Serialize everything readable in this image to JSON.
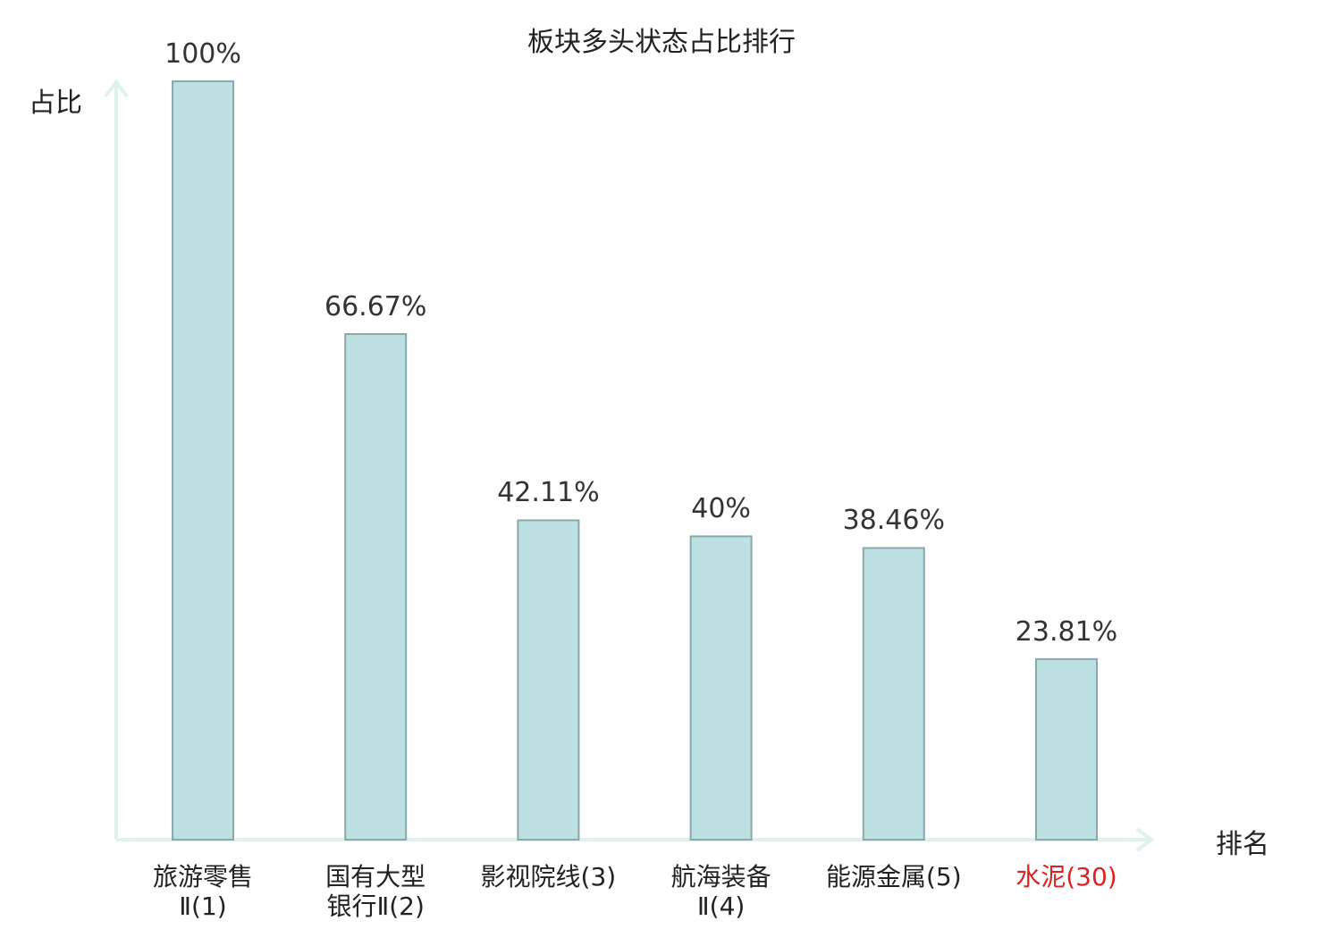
{
  "chart_data": {
    "type": "bar",
    "title": "板块多头状态占比排行",
    "ylabel": "占比",
    "xlabel": "排名",
    "ylim": [
      0,
      100
    ],
    "grid": false,
    "categories": [
      {
        "name": "旅游零售Ⅱ",
        "rank": "(1)",
        "line1": "旅游零售",
        "line2": "Ⅱ(1)",
        "highlight": false
      },
      {
        "name": "国有大型银行Ⅱ",
        "rank": "(2)",
        "line1": "国有大型",
        "line2": "银行Ⅱ(2)",
        "highlight": false
      },
      {
        "name": "影视院线",
        "rank": "(3)",
        "line1": "影视院线(3)",
        "line2": "",
        "highlight": false
      },
      {
        "name": "航海装备Ⅱ",
        "rank": "(4)",
        "line1": "航海装备",
        "line2": "Ⅱ(4)",
        "highlight": false
      },
      {
        "name": "能源金属",
        "rank": "(5)",
        "line1": "能源金属(5)",
        "line2": "",
        "highlight": false
      },
      {
        "name": "水泥",
        "rank": "(30)",
        "line1": "水泥(30)",
        "line2": "",
        "highlight": true
      }
    ],
    "values": [
      100,
      66.67,
      42.11,
      40,
      38.46,
      23.81
    ],
    "value_labels": [
      "100%",
      "66.67%",
      "42.11%",
      "40%",
      "38.46%",
      "23.81%"
    ],
    "colors": {
      "bar_fill": "#bde0e3",
      "bar_stroke": "#8aa9ab",
      "axis": "#dff2ee",
      "highlight_text": "#e02020"
    }
  }
}
